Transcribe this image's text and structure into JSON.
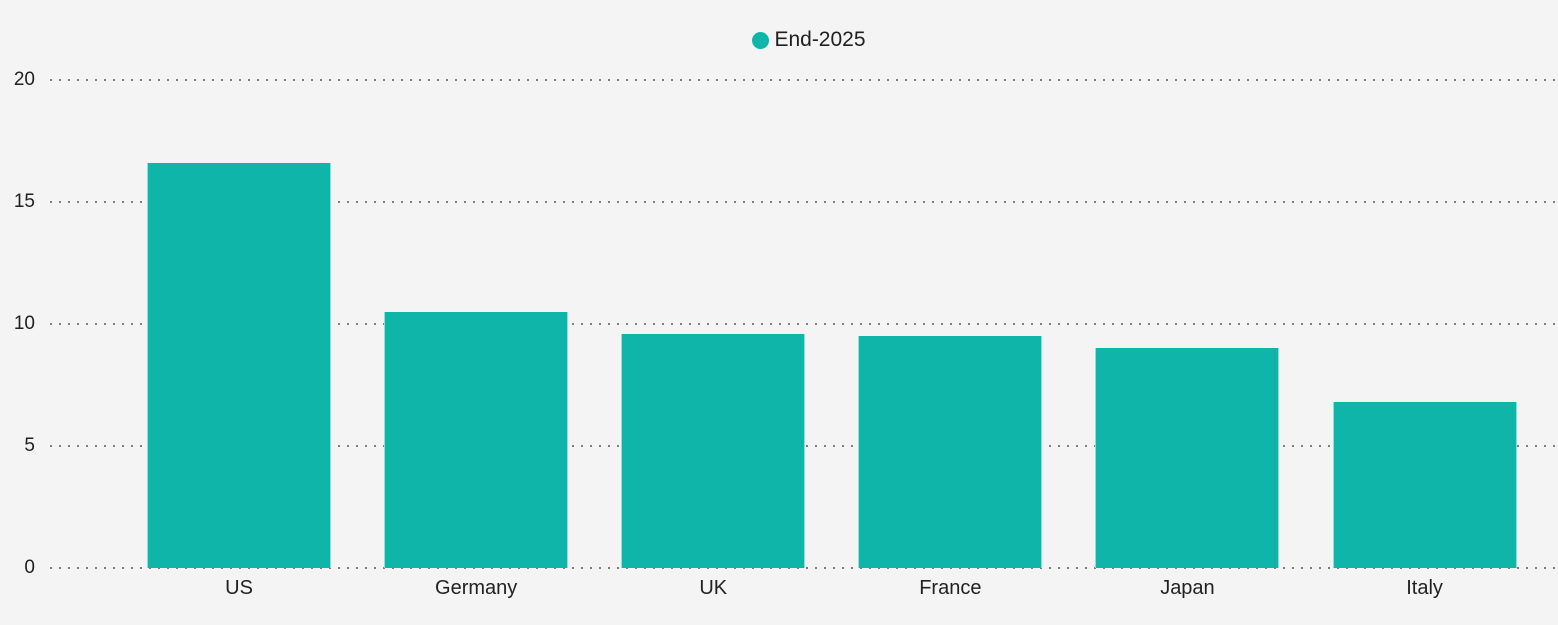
{
  "chart_data": {
    "type": "bar",
    "title": "",
    "legend": "End-2025",
    "legend_position": "top-center",
    "categories": [
      "US",
      "Germany",
      "UK",
      "France",
      "Japan",
      "Italy"
    ],
    "series": [
      {
        "name": "End-2025",
        "values": [
          16.6,
          10.5,
          9.6,
          9.5,
          9.0,
          6.8
        ]
      }
    ],
    "xlabel": "",
    "ylabel": "",
    "ylim": [
      0,
      20
    ],
    "y_ticks": [
      0,
      5,
      10,
      15,
      20
    ],
    "grid": "dotted-horizontal",
    "colors": {
      "bar": "#0FB5A9",
      "background": "#F4F4F4",
      "text": "#212121",
      "gridline": "#7E7E7E"
    }
  }
}
